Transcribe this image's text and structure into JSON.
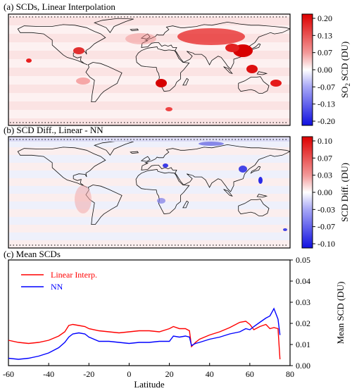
{
  "colors": {
    "frame": "#000000",
    "map_background": "#fbe9e9",
    "land_outline": "#111111",
    "scale_low": "#1f1fe6",
    "scale_mid": "#ffffff",
    "scale_high": "#e01010",
    "linear_line": "#ff0000",
    "nn_line": "#0000ff"
  },
  "panels": {
    "a": {
      "title": "(a) SCDs, Linear Interpolation",
      "colorbar": {
        "label": "SO2 SCD (DU)",
        "label_base": "SO",
        "label_sub": "2",
        "label_rest": " SCD (DU)",
        "ticks": [
          "0.20",
          "0.13",
          "0.07",
          "0.00",
          "-0.07",
          "-0.13",
          "-0.20"
        ],
        "range": [
          -0.2,
          0.2
        ]
      }
    },
    "b": {
      "title": "(b) SCD Diff., Linear - NN",
      "colorbar": {
        "label": "SCD Diff. (DU)",
        "ticks": [
          "0.10",
          "0.07",
          "0.03",
          "0.00",
          "-0.03",
          "-0.07",
          "-0.10"
        ],
        "range": [
          -0.1,
          0.1
        ]
      }
    },
    "c": {
      "title": "(c) Mean SCDs"
    }
  },
  "chart_data": [
    {
      "type": "heatmap",
      "panel": "a",
      "title": "(a) SCDs, Linear Interpolation",
      "projection": "global lat-lon map",
      "colorbar_label": "SO2 SCD (DU)",
      "colorbar_ticks": [
        0.2,
        0.13,
        0.07,
        0.0,
        -0.07,
        -0.13,
        -0.2
      ],
      "value_range": [
        -0.2,
        0.2
      ]
    },
    {
      "type": "heatmap",
      "panel": "b",
      "title": "(b) SCD Diff., Linear - NN",
      "projection": "global lat-lon map",
      "colorbar_label": "SCD Diff. (DU)",
      "colorbar_ticks": [
        0.1,
        0.07,
        0.03,
        0.0,
        -0.03,
        -0.07,
        -0.1
      ],
      "value_range": [
        -0.1,
        0.1
      ]
    },
    {
      "type": "line",
      "panel": "c",
      "title": "(c) Mean SCDs",
      "xlabel": "Latitude",
      "ylabel": "Mean SCD (DU)",
      "xlim": [
        -60,
        80
      ],
      "ylim": [
        0,
        0.05
      ],
      "xticks": [
        "-60",
        "-40",
        "-20",
        "0",
        "20",
        "40",
        "60",
        "80"
      ],
      "yticks": [
        "0.00",
        "0.01",
        "0.02",
        "0.03",
        "0.04",
        "0.05"
      ],
      "legend_position": "top-left",
      "x": [
        -60,
        -55,
        -50,
        -45,
        -40,
        -35,
        -32,
        -30,
        -28,
        -25,
        -22,
        -20,
        -15,
        -10,
        -5,
        0,
        5,
        10,
        15,
        20,
        22,
        25,
        28,
        30,
        31,
        33,
        35,
        40,
        45,
        50,
        55,
        58,
        60,
        62,
        65,
        68,
        70,
        72,
        74,
        75
      ],
      "series": [
        {
          "name": "Linear Interp.",
          "color": "#ff0000",
          "values": [
            0.012,
            0.011,
            0.0105,
            0.011,
            0.012,
            0.014,
            0.016,
            0.019,
            0.0195,
            0.019,
            0.0185,
            0.0175,
            0.0165,
            0.016,
            0.0155,
            0.016,
            0.0165,
            0.0165,
            0.016,
            0.0175,
            0.0185,
            0.0175,
            0.0175,
            0.0165,
            0.009,
            0.011,
            0.0125,
            0.0145,
            0.016,
            0.018,
            0.0205,
            0.021,
            0.0195,
            0.017,
            0.0185,
            0.0195,
            0.0175,
            0.018,
            0.0175,
            0.003
          ]
        },
        {
          "name": "NN",
          "color": "#0000ff",
          "values": [
            0.0035,
            0.003,
            0.0035,
            0.0045,
            0.006,
            0.0085,
            0.011,
            0.0135,
            0.015,
            0.0155,
            0.015,
            0.0135,
            0.0115,
            0.0115,
            0.011,
            0.0105,
            0.011,
            0.011,
            0.0115,
            0.0115,
            0.014,
            0.0135,
            0.014,
            0.0135,
            0.0095,
            0.0105,
            0.011,
            0.0125,
            0.0135,
            0.015,
            0.016,
            0.0175,
            0.017,
            0.0185,
            0.0205,
            0.0225,
            0.0235,
            0.027,
            0.022,
            0.0145
          ]
        }
      ]
    }
  ]
}
